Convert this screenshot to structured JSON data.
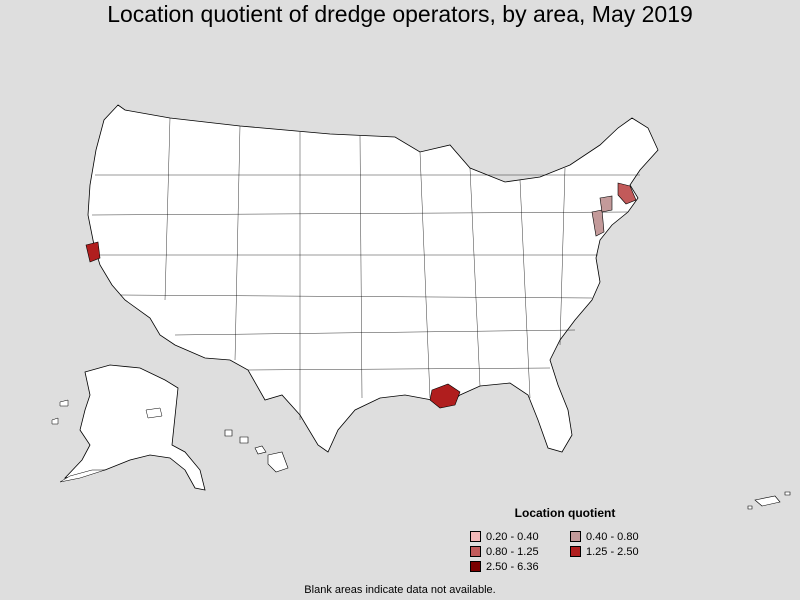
{
  "title": "Location quotient of dredge operators, by area, May 2019",
  "legend": {
    "title": "Location quotient",
    "items": [
      {
        "label": "0.20 - 0.40",
        "color": "#f3b8b8"
      },
      {
        "label": "0.40 - 0.80",
        "color": "#c39a9a"
      },
      {
        "label": "0.80 - 1.25",
        "color": "#c25a5a"
      },
      {
        "label": "1.25 - 2.50",
        "color": "#b01e1e"
      },
      {
        "label": "2.50 - 6.36",
        "color": "#7a0000"
      }
    ]
  },
  "footnote": "Blank areas indicate data not available.",
  "colors": {
    "background": "#dedede",
    "land": "#ffffff",
    "border": "#000000"
  }
}
